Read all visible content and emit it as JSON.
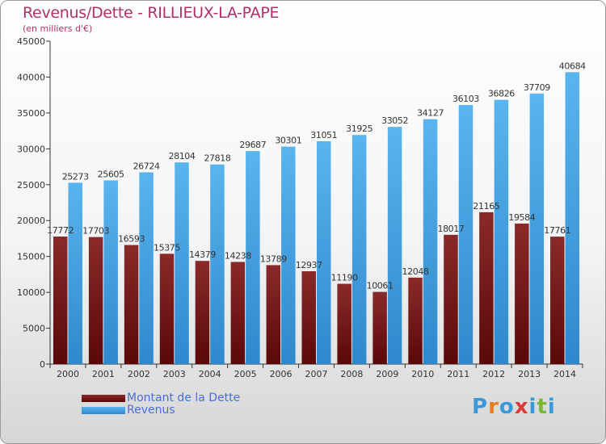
{
  "chart_data": {
    "type": "bar",
    "title": "Revenus/Dette - RILLIEUX-LA-PAPE",
    "subtitle": "(en milliers d'€)",
    "categories": [
      "2000",
      "2001",
      "2002",
      "2003",
      "2004",
      "2005",
      "2006",
      "2007",
      "2008",
      "2009",
      "2010",
      "2011",
      "2012",
      "2013",
      "2014"
    ],
    "series": [
      {
        "name": "Montant de la Dette",
        "color": "#7a1a1a",
        "values": [
          17772,
          17703,
          16593,
          15375,
          14379,
          14238,
          13789,
          12937,
          11190,
          10061,
          12048,
          18017,
          21165,
          19584,
          17761
        ],
        "labels": [
          "17772",
          "17703",
          "16593",
          "15375",
          "14379",
          "14238",
          "13789",
          "12937",
          "11190",
          "10061",
          "12048",
          "18017",
          "21165",
          "19584",
          "17761"
        ]
      },
      {
        "name": "Revenus",
        "color": "#4ea8e8",
        "values": [
          25273,
          25605,
          26724,
          28104,
          27818,
          29687,
          30301,
          31051,
          31925,
          33052,
          34127,
          36103,
          36826,
          37709,
          40684
        ],
        "labels": [
          "25273",
          "25605",
          "26724",
          "28104",
          "27818",
          "29687",
          "30301",
          "31051",
          "31925",
          "33052",
          "34127",
          "36103",
          "36826",
          "37709",
          "40684"
        ]
      }
    ],
    "ylim": [
      0,
      45000
    ],
    "yticks": [
      0,
      5000,
      10000,
      15000,
      20000,
      25000,
      30000,
      35000,
      40000,
      45000
    ],
    "grid": false,
    "legend_position": "bottom-left"
  },
  "logo": {
    "letters": [
      "P",
      "r",
      "o",
      "x",
      "i",
      "t",
      "i"
    ],
    "colors": [
      "#3a9ad9",
      "#e87d1e",
      "#3a9ad9",
      "#d93a3a",
      "#3a9ad9",
      "#7ab83a",
      "#3a9ad9"
    ]
  }
}
